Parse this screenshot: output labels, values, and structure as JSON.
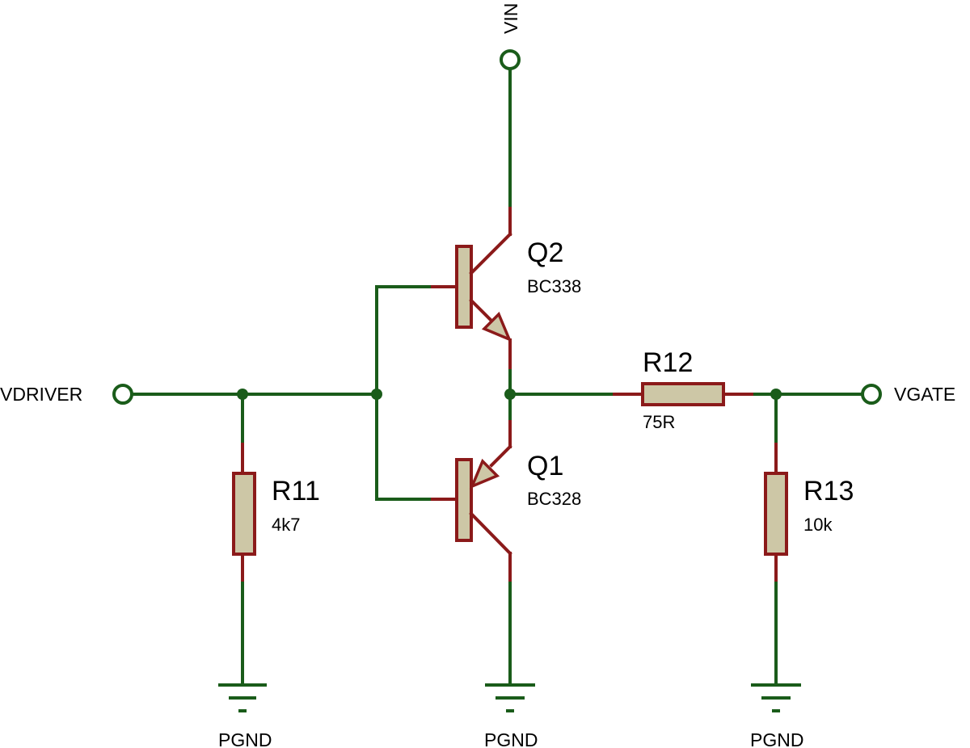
{
  "nets": {
    "vin": "VIN",
    "vdriver": "VDRIVER",
    "vgate": "VGATE",
    "pgnd": "PGND"
  },
  "components": {
    "q2": {
      "ref": "Q2",
      "value": "BC338"
    },
    "q1": {
      "ref": "Q1",
      "value": "BC328"
    },
    "r11": {
      "ref": "R11",
      "value": "4k7"
    },
    "r12": {
      "ref": "R12",
      "value": "75R"
    },
    "r13": {
      "ref": "R13",
      "value": "10k"
    }
  },
  "colors": {
    "wire": "#1a5c1a",
    "component_outline": "#8b1a1a",
    "component_fill": "#cdc7a6",
    "background": "#ffffff"
  }
}
